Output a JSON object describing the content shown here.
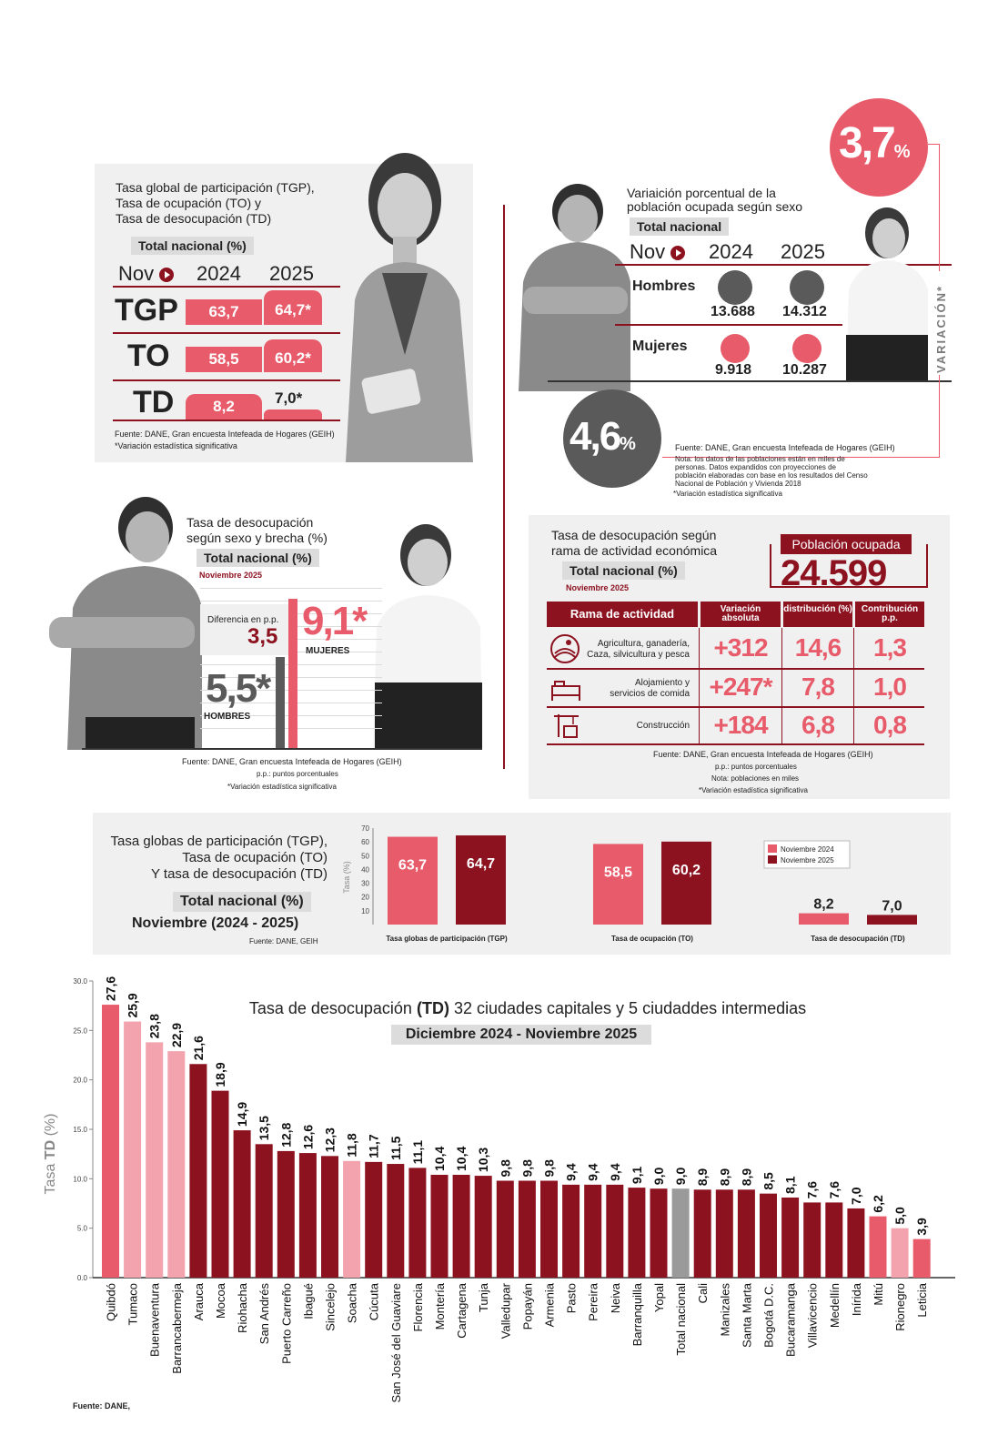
{
  "tgp_panel": {
    "title_line1": "Tasa global de participación (TGP),",
    "title_line2": "Tasa de ocupación (TO) y",
    "title_line3": "Tasa de desocupación (TD)",
    "tag": "Total nacional (%)",
    "period_label": "Nov",
    "year1": "2024",
    "year2": "2025",
    "rows": [
      {
        "label": "TGP",
        "v2024": "63,7",
        "v2025": "64,7*",
        "f2024": 63.7,
        "f2025": 64.7
      },
      {
        "label": "TO",
        "v2024": "58,5",
        "v2025": "60,2*",
        "f2024": 58.5,
        "f2025": 60.2
      },
      {
        "label": "TD",
        "v2024": "8,2",
        "v2025": "7,0*",
        "f2024": 8.2,
        "f2025": 7.0
      }
    ],
    "source": "Fuente: DANE, Gran encuesta Intefeada de Hogares (GEIH)",
    "note": "*Variación estadística significativa"
  },
  "sex_panel": {
    "title_line1": "Variaición porcentual de la",
    "title_line2": "población ocupada según sexo",
    "tag": "Total nacional",
    "period_label": "Nov",
    "year1": "2024",
    "year2": "2025",
    "hombres_label": "Hombres",
    "mujeres_label": "Mujeres",
    "h2024": "13.688",
    "h2025": "14.312",
    "m2024": "9.918",
    "m2025": "10.287",
    "var_mujeres": "3,7",
    "var_hombres": "4,6",
    "pct": "%",
    "variacion_label": "VARIACIÓN*",
    "source": "Fuente: DANE, Gran encuesta Intefeada de Hogares (GEIH)",
    "nota1": "Nota: los datos de las poblaciones están en miles de",
    "nota2": "personas. Datos expandidos con proyecciones de",
    "nota3": "población elaboradas con base en los resultados del Censo",
    "nota4": "Nacional de Población y Vivienda 2018",
    "note": "*Variación estadística significativa",
    "colors": {
      "hombres": "#5a5a5a",
      "mujeres": "#e85b6a"
    }
  },
  "brecha_panel": {
    "title_line1": "Tasa de desocupación",
    "title_line2": "según sexo y brecha (%)",
    "tag": "Total nacional (%)",
    "period": "Noviembre 2025",
    "diff_label": "Diferencia en p.p.",
    "diff_value": "3,5",
    "mujeres_value": "9,1*",
    "mujeres_label": "MUJERES",
    "hombres_value": "5,5*",
    "hombres_label": "HOMBRES",
    "source": "Fuente: DANE, Gran encuesta Intefeada de Hogares (GEIH)",
    "pp": "p.p.: puntos porcentuales",
    "note": "*Variación estadística significativa"
  },
  "rama_panel": {
    "title_line1": "Tasa de desocupación según",
    "title_line2": "rama de actividad económica",
    "tag": "Total nacional (%)",
    "period": "Noviembre 2025",
    "ocupada_label": "Población ocupada",
    "ocupada_value": "24.599",
    "headers": [
      "Rama de actividad",
      "Variación absoluta",
      "distribución (%)",
      "Contribución p.p."
    ],
    "rows": [
      {
        "name1": "Agricultura, ganadería,",
        "name2": "Caza, silvicultura y pesca",
        "var": "+312",
        "dist": "14,6",
        "contrib": "1,3",
        "icon": "agriculture-icon"
      },
      {
        "name1": "Alojamiento y",
        "name2": "servicios de comida",
        "var": "+247*",
        "dist": "7,8",
        "contrib": "1,0",
        "icon": "bed-icon"
      },
      {
        "name1": "Construcción",
        "name2": "",
        "var": "+184",
        "dist": "6,8",
        "contrib": "0,8",
        "icon": "crane-icon"
      }
    ],
    "source": "Fuente: DANE, Gran encuesta Intefeada de Hogares (GEIH)",
    "pp": "p.p.: puntos porcentuales",
    "nota": "Nota: poblaciones en miles",
    "note": "*Variación estadística significativa"
  },
  "chart_data": [
    {
      "type": "bar",
      "title_line1": "Tasa globas de participación  (TGP),",
      "title_line2": "Tasa de ocupación (TO)",
      "title_line3": "Y tasa de desocupación (TD)",
      "tag": "Total nacional (%)",
      "subtitle": "Noviembre (2024 - 2025)",
      "source": "Fuente: DANE, GEIH",
      "ylabel": "Tasa (%)",
      "ylim": [
        0,
        70
      ],
      "yticks": [
        10,
        20,
        30,
        40,
        50,
        60,
        70
      ],
      "categories": [
        "Tasa globas de participación  (TGP)",
        "Tasa de ocupación (TO)",
        "Tasa de desocupación (TD)"
      ],
      "series": [
        {
          "name": "Noviembre 2024",
          "values": [
            63.7,
            58.5,
            8.2
          ],
          "labels": [
            "63,7",
            "58,5",
            "8,2"
          ],
          "color": "#e85b6a"
        },
        {
          "name": "Noviembre 2025",
          "values": [
            64.7,
            60.2,
            7.0
          ],
          "labels": [
            "64,7",
            "60,2",
            "7,0"
          ],
          "color": "#8d1220"
        }
      ],
      "legend": "top-right"
    },
    {
      "type": "bar",
      "title_pre": "Tasa de desocupación ",
      "title_bold": "(TD)",
      "title_post": " 32 ciudades capitales y 5 ciudaddes intermedias",
      "subtitle": "Diciembre 2024 - Noviembre 2025",
      "ylabel_pre": "Tasa ",
      "ylabel_bold": "TD",
      "ylabel_post": " (%)",
      "ylim": [
        0,
        30
      ],
      "yticks": [
        "0.0",
        "5.0",
        "10.0",
        "15.0",
        "20.0",
        "25.0",
        "30.0"
      ],
      "source": "Fuente: DANE,",
      "categories": [
        "Quibdó",
        "Tumaco",
        "Buenaventura",
        "Barrancabermeja",
        "Arauca",
        "Mocoa",
        "Riohacha",
        "San Andrés",
        "Puerto Carreño",
        "Ibagué",
        "Sincelejo",
        "Soacha",
        "Cúcuta",
        "San José del Guaviare",
        "Florencia",
        "Montería",
        "Cartagena",
        "Tunja",
        "Valledupar",
        "Popayán",
        "Armenia",
        "Pasto",
        "Pereira",
        "Neiva",
        "Barranquilla",
        "Yopal",
        "Total nacional",
        "Cali",
        "Manizales",
        "Santa Marta",
        "Bogotá D.C.",
        "Bucaramanga",
        "Villavicencio",
        "Medellín",
        "Inírida",
        "Mitú",
        "Rionegro",
        "Leticia"
      ],
      "values": [
        27.6,
        25.9,
        23.8,
        22.9,
        21.6,
        18.9,
        14.9,
        13.5,
        12.8,
        12.6,
        12.3,
        11.8,
        11.7,
        11.5,
        11.1,
        10.4,
        10.4,
        10.3,
        9.8,
        9.8,
        9.8,
        9.4,
        9.4,
        9.4,
        9.1,
        9.0,
        9.0,
        8.9,
        8.9,
        8.9,
        8.5,
        8.1,
        7.6,
        7.6,
        7.0,
        6.2,
        5.0,
        3.9
      ],
      "labels": [
        "27,6",
        "25,9",
        "23,8",
        "22,9",
        "21,6",
        "18,9",
        "14,9",
        "13,5",
        "12,8",
        "12,6",
        "12,3",
        "11,8",
        "11,7",
        "11,5",
        "11,1",
        "10,4",
        "10,4",
        "10,3",
        "9,8",
        "9,8",
        "9,8",
        "9,4",
        "9,4",
        "9,4",
        "9,1",
        "9,0",
        "9,0",
        "8,9",
        "8,9",
        "8,9",
        "8,5",
        "8,1",
        "7,6",
        "7,6",
        "7,0",
        "6,2",
        "5,0",
        "3,9"
      ],
      "bar_colors": [
        "#e85b6a",
        "#f3a3ad",
        "#f3a3ad",
        "#f3a3ad",
        "#8d1220",
        "#8d1220",
        "#8d1220",
        "#8d1220",
        "#8d1220",
        "#8d1220",
        "#8d1220",
        "#f3a3ad",
        "#8d1220",
        "#8d1220",
        "#8d1220",
        "#8d1220",
        "#8d1220",
        "#8d1220",
        "#8d1220",
        "#8d1220",
        "#8d1220",
        "#8d1220",
        "#8d1220",
        "#8d1220",
        "#8d1220",
        "#8d1220",
        "#9a9a9a",
        "#8d1220",
        "#8d1220",
        "#8d1220",
        "#8d1220",
        "#8d1220",
        "#8d1220",
        "#8d1220",
        "#8d1220",
        "#e85b6a",
        "#f3a3ad",
        "#e85b6a"
      ]
    }
  ]
}
